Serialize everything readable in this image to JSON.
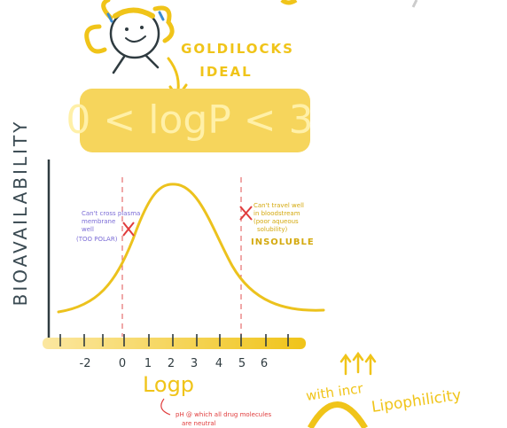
{
  "mascot": {
    "label_lines": [
      "GOLDILOCKS",
      "IDEAL"
    ]
  },
  "ideal_range": "0 < logP < 3",
  "y_axis_label": "BIOAVAILABILITY",
  "left_note": {
    "lines": [
      "Can't cross plasma",
      "membrane",
      "well",
      "(TOO POLAR)"
    ]
  },
  "right_note": {
    "lines": [
      "Can't travel well",
      "in bloodstream",
      "(poor aqueous",
      "solubility)"
    ],
    "tag": "INSOLUBLE"
  },
  "x_axis": {
    "ticks": [
      "-2",
      "0",
      "1",
      "2",
      "3",
      "4",
      "5",
      "6"
    ],
    "label": "Logp"
  },
  "zero_note": {
    "lines": [
      "pH @ which all drug molecules",
      "are neutral"
    ]
  },
  "trend": {
    "lines": [
      "with incr",
      "Lipophilicity"
    ]
  }
}
